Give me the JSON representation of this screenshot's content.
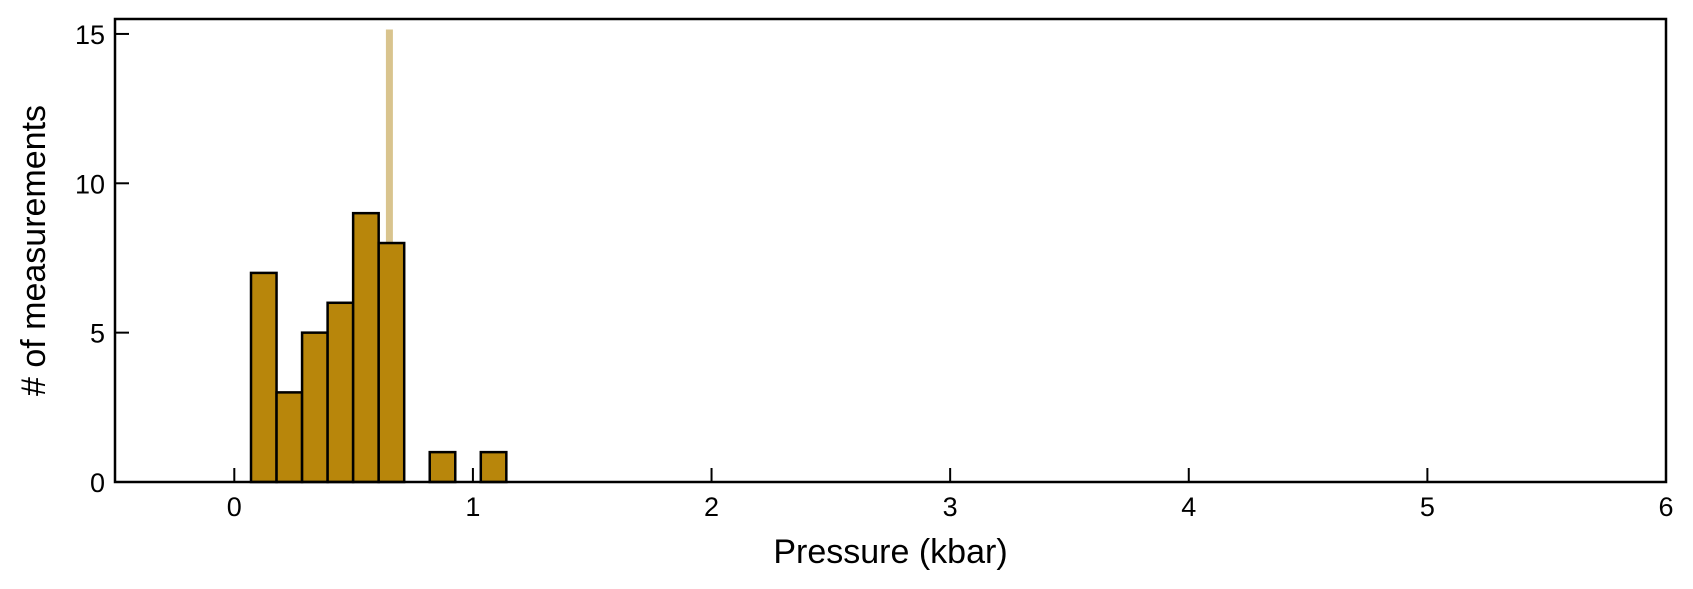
{
  "chart_data": {
    "type": "bar",
    "title": "",
    "xlabel": "Pressure (kbar)",
    "ylabel": "# of measurements",
    "xlim": [
      -0.5,
      6
    ],
    "ylim": [
      0,
      15.5
    ],
    "x_ticks": [
      0,
      1,
      2,
      3,
      4,
      5,
      6
    ],
    "x_tick_labels": [
      "0",
      "1",
      "2",
      "3",
      "4",
      "5",
      "6"
    ],
    "y_ticks": [
      0,
      5,
      10,
      15
    ],
    "y_tick_labels": [
      "0",
      "5",
      "10",
      "15"
    ],
    "bin_width": 0.107,
    "bins": [
      {
        "x_start": 0.07,
        "count": 7
      },
      {
        "x_start": 0.177,
        "count": 3
      },
      {
        "x_start": 0.284,
        "count": 5
      },
      {
        "x_start": 0.391,
        "count": 6
      },
      {
        "x_start": 0.498,
        "count": 9
      },
      {
        "x_start": 0.605,
        "count": 8
      },
      {
        "x_start": 0.819,
        "count": 1
      },
      {
        "x_start": 1.033,
        "count": 1
      }
    ],
    "reference_line": {
      "x": 0.65,
      "y_top": 15.15,
      "color": "#d9c48e"
    },
    "bar_color": "#b8860b",
    "bar_edge_color": "#000000",
    "grid": false
  }
}
